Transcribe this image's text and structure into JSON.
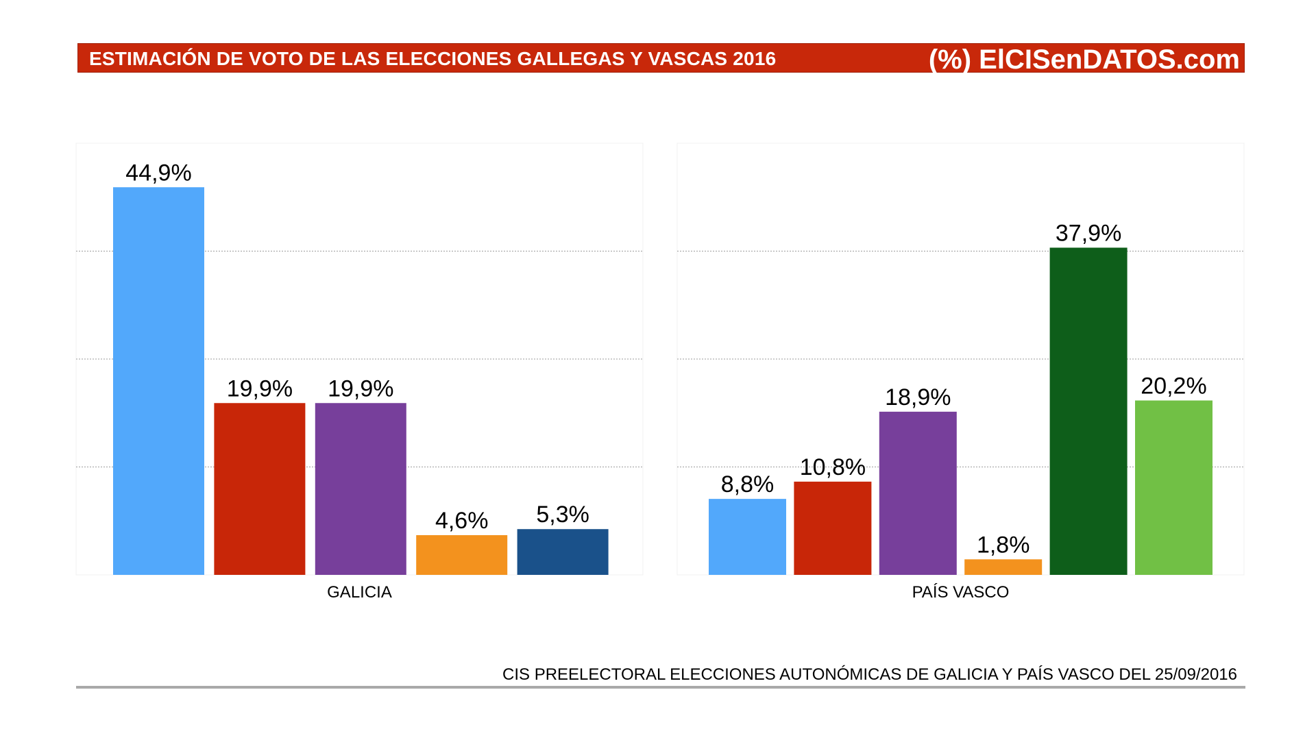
{
  "header": {
    "title": "ESTIMACIÓN DE VOTO DE LAS ELECCIONES GALLEGAS Y VASCAS 2016",
    "brand": "(%) ElCISenDATOS.com",
    "background": "#c8280a"
  },
  "chart_data": [
    {
      "type": "bar",
      "category": "GALICIA",
      "ylim": [
        0,
        50
      ],
      "grid": true,
      "values": [
        44.9,
        19.9,
        19.9,
        4.6,
        5.3
      ],
      "labels": [
        "44,9%",
        "19,9%",
        "19,9%",
        "4,6%",
        "5,3%"
      ],
      "colors": [
        "#52a8fb",
        "#c82608",
        "#773f9b",
        "#f3921e",
        "#1a518a"
      ]
    },
    {
      "type": "bar",
      "category": "PAÍS VASCO",
      "ylim": [
        0,
        50
      ],
      "grid": true,
      "values": [
        8.8,
        10.8,
        18.9,
        1.8,
        37.9,
        20.2
      ],
      "labels": [
        "8,8%",
        "10,8%",
        "18,9%",
        "1,8%",
        "37,9%",
        "20,2%"
      ],
      "colors": [
        "#52a8fb",
        "#c82608",
        "#773f9b",
        "#f3921e",
        "#0e5e1a",
        "#71c045"
      ]
    }
  ],
  "footer": {
    "source": "CIS PREELECTORAL ELECCIONES AUTONÓMICAS DE GALICIA Y PAÍS VASCO DEL 25/09/2016"
  }
}
